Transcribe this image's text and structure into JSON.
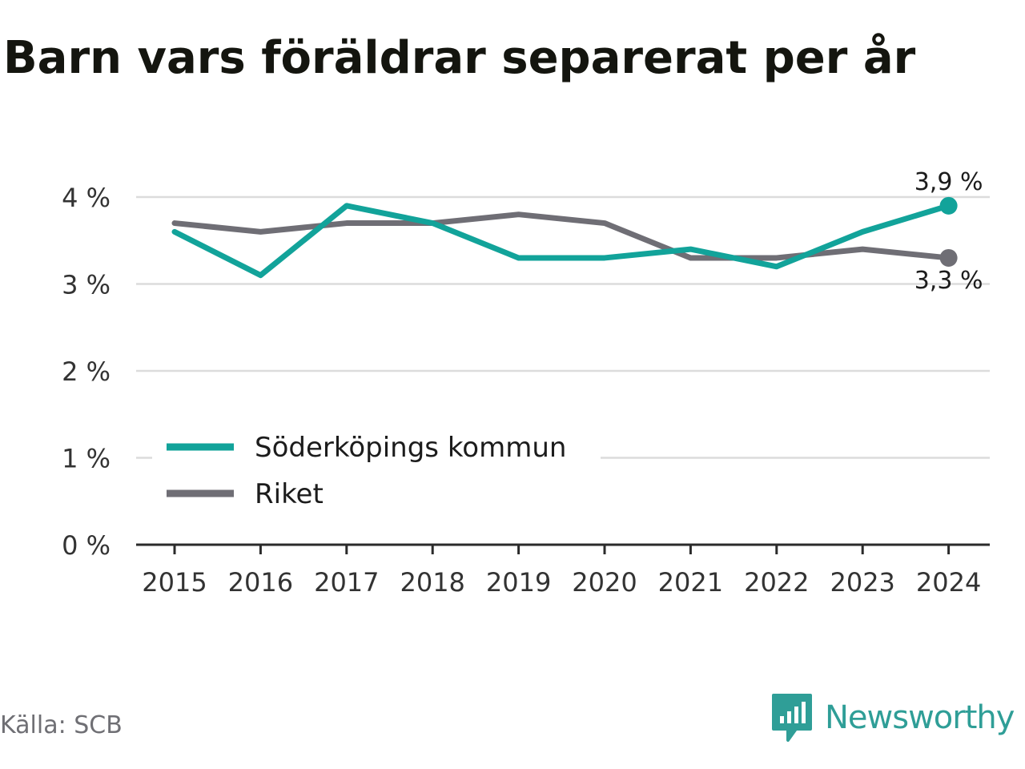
{
  "title": "Barn vars föräldrar separerat per år",
  "source": "Källa: SCB",
  "brand": {
    "name": "Newsworthy",
    "icon": "newsworthy-logo-icon",
    "color": "#2f9e97"
  },
  "colors": {
    "series1": "#12a39a",
    "series2": "#6f6e75",
    "grid": "#dcdcdc",
    "axis": "#2b2b2b",
    "text": "#333333"
  },
  "chart_data": {
    "type": "line",
    "title": "Barn vars föräldrar separerat per år",
    "xlabel": "",
    "ylabel": "",
    "x": [
      "2015",
      "2016",
      "2017",
      "2018",
      "2019",
      "2020",
      "2021",
      "2022",
      "2023",
      "2024"
    ],
    "ylim": [
      0,
      4
    ],
    "yticks": [
      0,
      1,
      2,
      3,
      4
    ],
    "ytick_labels": [
      "0 %",
      "1 %",
      "2 %",
      "3 %",
      "4 %"
    ],
    "grid": true,
    "legend_position": "bottom-left",
    "series": [
      {
        "name": "Söderköpings kommun",
        "color": "#12a39a",
        "values": [
          3.6,
          3.1,
          3.9,
          3.7,
          3.3,
          3.3,
          3.4,
          3.2,
          3.6,
          3.9
        ],
        "end_label": "3,9 %"
      },
      {
        "name": "Riket",
        "color": "#6f6e75",
        "values": [
          3.7,
          3.6,
          3.7,
          3.7,
          3.8,
          3.7,
          3.3,
          3.3,
          3.4,
          3.3
        ],
        "end_label": "3,3 %"
      }
    ]
  }
}
